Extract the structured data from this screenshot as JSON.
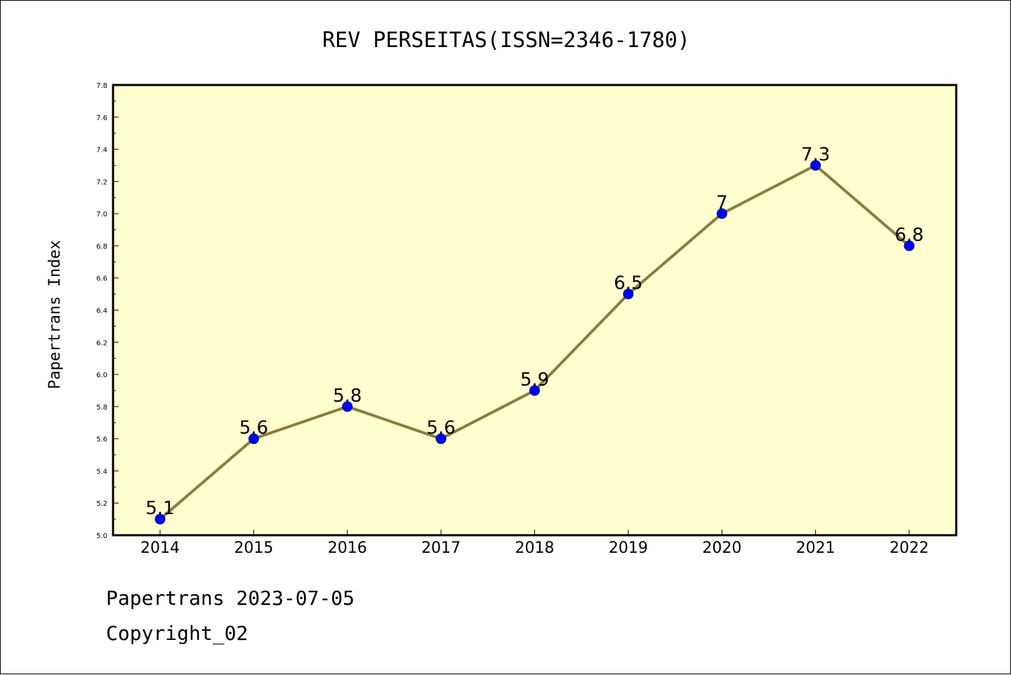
{
  "chart_data": {
    "type": "line",
    "title": "REV PERSEITAS(ISSN=2346-1780)",
    "xlabel": "",
    "ylabel": "Papertrans Index",
    "categories": [
      "2014",
      "2015",
      "2016",
      "2017",
      "2018",
      "2019",
      "2020",
      "2021",
      "2022"
    ],
    "series": [
      {
        "values": [
          5.1,
          5.6,
          5.8,
          5.6,
          5.9,
          6.5,
          7.0,
          7.3,
          6.8
        ],
        "labels": [
          "5.1",
          "5.6",
          "5.8",
          "5.6",
          "5.9",
          "6.5",
          "7",
          "7.3",
          "6.8"
        ]
      }
    ],
    "ylim": [
      5.0,
      7.8
    ],
    "yticks": [
      "5.0",
      "5.2",
      "5.4",
      "5.6",
      "5.8",
      "6.0",
      "6.2",
      "6.4",
      "6.6",
      "6.8",
      "7.0",
      "7.2",
      "7.4",
      "7.6",
      "7.8"
    ],
    "grid": false,
    "colors": {
      "plot_background": "#FFFFD0",
      "line": "#8B7D3A",
      "marker": "#0000FF"
    }
  },
  "footer": {
    "line1": "Papertrans 2023-07-05",
    "line2": "Copyright_02"
  }
}
